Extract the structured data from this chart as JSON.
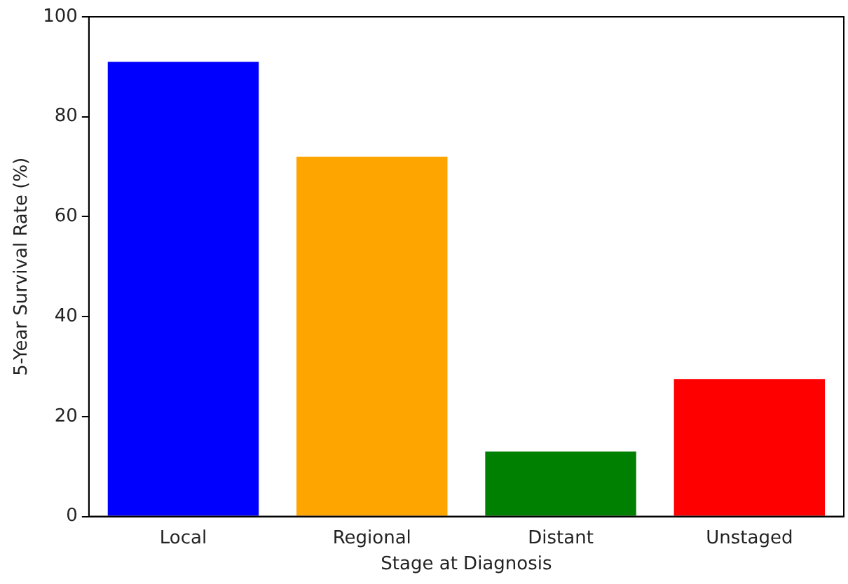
{
  "chart_data": {
    "type": "bar",
    "xlabel": "Stage at Diagnosis",
    "ylabel": "5-Year Survival Rate (%)",
    "categories": [
      "Local",
      "Regional",
      "Distant",
      "Unstaged"
    ],
    "values": [
      91,
      72,
      13,
      27.5
    ],
    "colors": [
      "#0000ff",
      "#ffa500",
      "#008000",
      "#ff0000"
    ],
    "ylim": [
      0,
      100
    ],
    "yticks": [
      0,
      20,
      40,
      60,
      80,
      100
    ],
    "grid": false,
    "legend": false
  }
}
